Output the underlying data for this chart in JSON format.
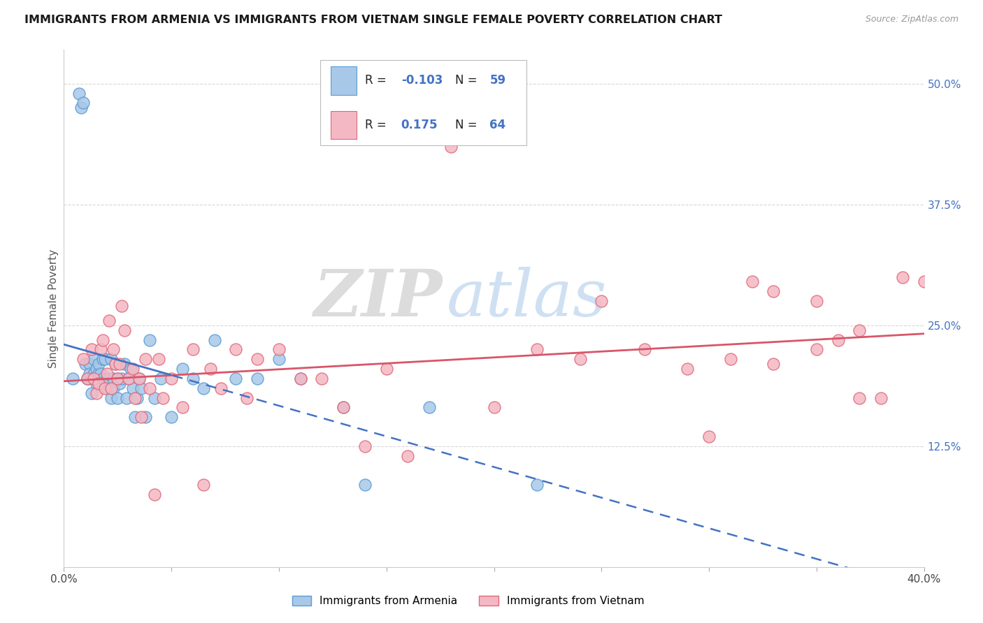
{
  "title": "IMMIGRANTS FROM ARMENIA VS IMMIGRANTS FROM VIETNAM SINGLE FEMALE POVERTY CORRELATION CHART",
  "source": "Source: ZipAtlas.com",
  "ylabel": "Single Female Poverty",
  "watermark_zip": "ZIP",
  "watermark_atlas": "atlas",
  "xlim": [
    0.0,
    0.4
  ],
  "ylim": [
    0.0,
    0.535
  ],
  "yticks_right": [
    0.125,
    0.25,
    0.375,
    0.5
  ],
  "ytick_labels_right": [
    "12.5%",
    "25.0%",
    "37.5%",
    "50.0%"
  ],
  "armenia_color": "#a8c8e8",
  "armenia_edge_color": "#5b9bd5",
  "vietnam_color": "#f4b8c4",
  "vietnam_edge_color": "#e06878",
  "trend_armenia_color": "#4472c4",
  "trend_vietnam_color": "#d9556a",
  "legend_label_armenia": "Immigrants from Armenia",
  "legend_label_vietnam": "Immigrants from Vietnam",
  "armenia_R_str": "-0.103",
  "armenia_N_str": "59",
  "vietnam_R_str": "0.175",
  "vietnam_N_str": "64",
  "background_color": "#ffffff",
  "grid_color": "#d8d8d8",
  "right_tick_color": "#4472c4",
  "armenia_x": [
    0.004,
    0.007,
    0.008,
    0.009,
    0.01,
    0.011,
    0.011,
    0.012,
    0.012,
    0.013,
    0.013,
    0.014,
    0.014,
    0.015,
    0.015,
    0.016,
    0.016,
    0.017,
    0.018,
    0.018,
    0.019,
    0.02,
    0.02,
    0.021,
    0.022,
    0.022,
    0.023,
    0.023,
    0.024,
    0.025,
    0.025,
    0.026,
    0.027,
    0.028,
    0.029,
    0.03,
    0.031,
    0.032,
    0.033,
    0.034,
    0.035,
    0.036,
    0.038,
    0.04,
    0.042,
    0.045,
    0.05,
    0.055,
    0.06,
    0.065,
    0.07,
    0.08,
    0.09,
    0.1,
    0.11,
    0.13,
    0.14,
    0.17,
    0.22
  ],
  "armenia_y": [
    0.195,
    0.49,
    0.475,
    0.48,
    0.21,
    0.195,
    0.195,
    0.21,
    0.2,
    0.195,
    0.18,
    0.2,
    0.215,
    0.205,
    0.19,
    0.2,
    0.21,
    0.2,
    0.195,
    0.215,
    0.215,
    0.185,
    0.195,
    0.195,
    0.175,
    0.215,
    0.185,
    0.195,
    0.21,
    0.175,
    0.195,
    0.19,
    0.195,
    0.21,
    0.175,
    0.195,
    0.205,
    0.185,
    0.155,
    0.175,
    0.195,
    0.185,
    0.155,
    0.235,
    0.175,
    0.195,
    0.155,
    0.205,
    0.195,
    0.185,
    0.235,
    0.195,
    0.195,
    0.215,
    0.195,
    0.165,
    0.085,
    0.165,
    0.085
  ],
  "vietnam_x": [
    0.009,
    0.011,
    0.013,
    0.014,
    0.015,
    0.016,
    0.017,
    0.018,
    0.019,
    0.02,
    0.021,
    0.022,
    0.023,
    0.024,
    0.025,
    0.026,
    0.027,
    0.028,
    0.03,
    0.032,
    0.033,
    0.035,
    0.036,
    0.038,
    0.04,
    0.042,
    0.044,
    0.046,
    0.05,
    0.055,
    0.06,
    0.065,
    0.068,
    0.073,
    0.08,
    0.085,
    0.09,
    0.1,
    0.11,
    0.12,
    0.13,
    0.14,
    0.15,
    0.16,
    0.18,
    0.2,
    0.22,
    0.24,
    0.25,
    0.27,
    0.29,
    0.3,
    0.32,
    0.33,
    0.35,
    0.36,
    0.37,
    0.38,
    0.39,
    0.4,
    0.37,
    0.35,
    0.33,
    0.31
  ],
  "vietnam_y": [
    0.215,
    0.195,
    0.225,
    0.195,
    0.18,
    0.19,
    0.225,
    0.235,
    0.185,
    0.2,
    0.255,
    0.185,
    0.225,
    0.21,
    0.195,
    0.21,
    0.27,
    0.245,
    0.195,
    0.205,
    0.175,
    0.195,
    0.155,
    0.215,
    0.185,
    0.075,
    0.215,
    0.175,
    0.195,
    0.165,
    0.225,
    0.085,
    0.205,
    0.185,
    0.225,
    0.175,
    0.215,
    0.225,
    0.195,
    0.195,
    0.165,
    0.125,
    0.205,
    0.115,
    0.435,
    0.165,
    0.225,
    0.215,
    0.275,
    0.225,
    0.205,
    0.135,
    0.295,
    0.285,
    0.275,
    0.235,
    0.245,
    0.175,
    0.3,
    0.295,
    0.175,
    0.225,
    0.21,
    0.215
  ]
}
